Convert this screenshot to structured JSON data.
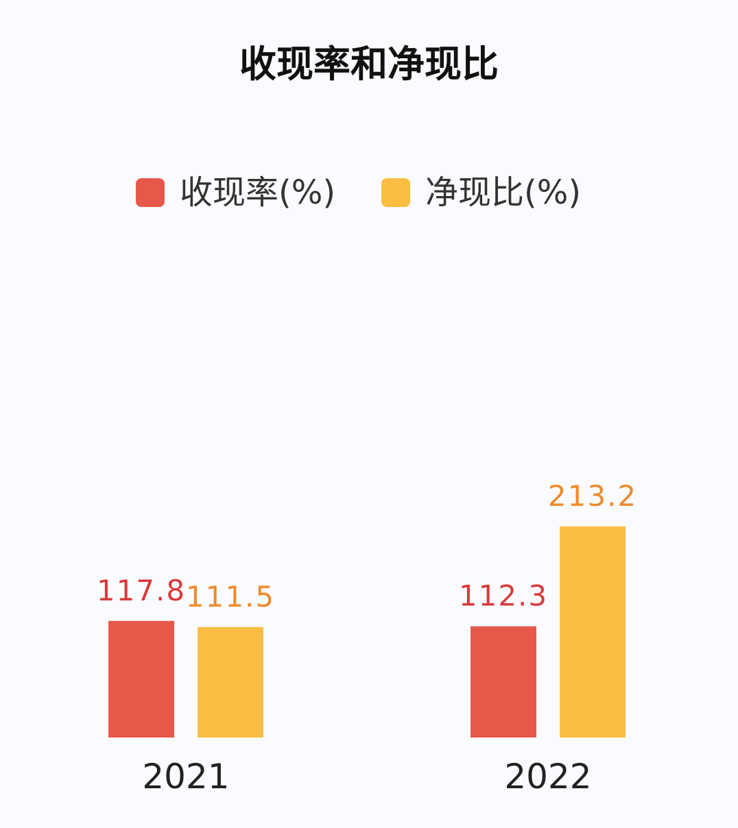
{
  "chart_data": {
    "type": "bar",
    "title": "收现率和净现比",
    "categories": [
      "2021",
      "2022"
    ],
    "series": [
      {
        "name": "收现率(%)",
        "color": "#e8584a",
        "label_color": "#d83a3a",
        "values": [
          117.8,
          112.3
        ]
      },
      {
        "name": "净现比(%)",
        "color": "#fbbd42",
        "label_color": "#f08a2a",
        "values": [
          111.5,
          213.2
        ]
      }
    ],
    "legend_position": "top",
    "grid": false,
    "ylim": [
      0,
      300
    ]
  }
}
